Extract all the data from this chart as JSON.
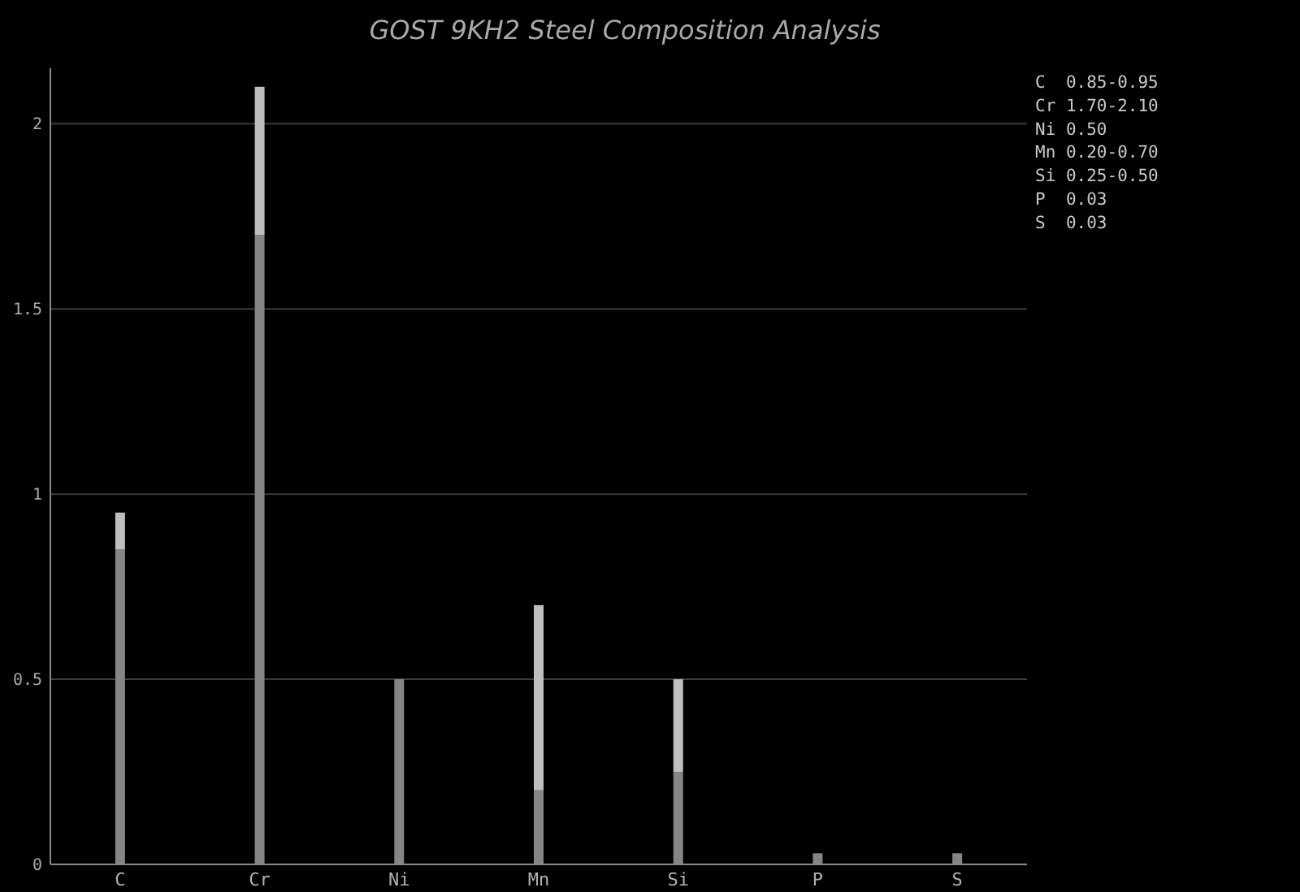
{
  "chart_data": {
    "type": "bar",
    "title": "GOST 9KH2 Steel Composition Analysis",
    "categories": [
      "C",
      "Cr",
      "Ni",
      "Mn",
      "Si",
      "P",
      "S"
    ],
    "stacked": true,
    "series": [
      {
        "color": "#858585",
        "values": [
          0.85,
          1.7,
          0.5,
          0.2,
          0.25,
          0.03,
          0.03
        ]
      },
      {
        "color": "#bebebe",
        "values": [
          0.1,
          0.4,
          0,
          0.5,
          0.25,
          0,
          0
        ]
      }
    ],
    "ylim": [
      0,
      2.15
    ],
    "yticks": [
      0,
      0.5,
      1,
      1.5,
      2
    ],
    "grid": "y",
    "annotations": [
      "C  0.85-0.95",
      "Cr 1.70-2.10",
      "Ni 0.50",
      "Mn 0.20-0.70",
      "Si 0.25-0.50",
      "P  0.03",
      "S  0.03"
    ]
  }
}
